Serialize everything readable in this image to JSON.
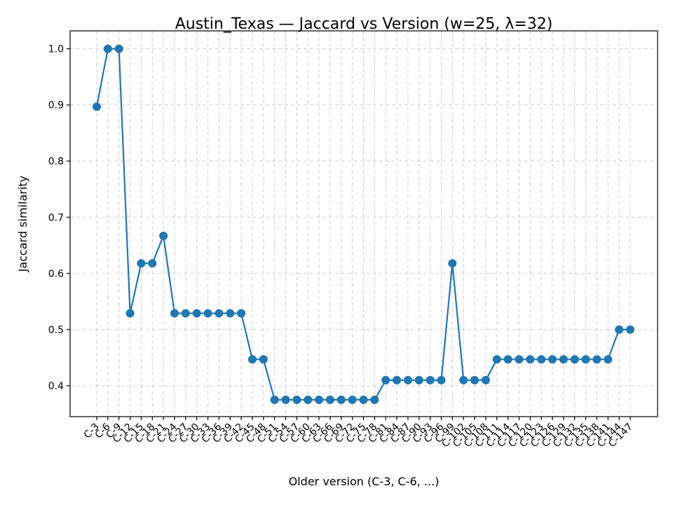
{
  "chart_data": {
    "type": "line",
    "title": "Austin_Texas — Jaccard vs Version (w=25, λ=32)",
    "xlabel": "Older version (C-3, C-6, ...)",
    "ylabel": "Jaccard similarity",
    "ylim": [
      0.345,
      1.032
    ],
    "yticks": [
      0.4,
      0.5,
      0.6,
      0.7,
      0.8,
      0.9,
      1.0
    ],
    "ytick_labels": [
      "0.4",
      "0.5",
      "0.6",
      "0.7",
      "0.8",
      "0.9",
      "1.0"
    ],
    "grid": true,
    "color": "#1f77b4",
    "categories": [
      "C-3",
      "C-6",
      "C-9",
      "C-12",
      "C-15",
      "C-18",
      "C-21",
      "C-24",
      "C-27",
      "C-30",
      "C-33",
      "C-36",
      "C-39",
      "C-42",
      "C-45",
      "C-48",
      "C-51",
      "C-54",
      "C-57",
      "C-60",
      "C-63",
      "C-66",
      "C-69",
      "C-72",
      "C-75",
      "C-78",
      "C-81",
      "C-84",
      "C-87",
      "C-90",
      "C-93",
      "C-96",
      "C-99",
      "C-102",
      "C-105",
      "C-108",
      "C-111",
      "C-114",
      "C-117",
      "C-120",
      "C-123",
      "C-126",
      "C-129",
      "C-132",
      "C-135",
      "C-138",
      "C-141",
      "C-144",
      "C-147"
    ],
    "values": [
      0.897,
      1.0,
      1.0,
      0.529,
      0.618,
      0.618,
      0.667,
      0.529,
      0.529,
      0.529,
      0.529,
      0.529,
      0.529,
      0.529,
      0.447,
      0.447,
      0.375,
      0.375,
      0.375,
      0.375,
      0.375,
      0.375,
      0.375,
      0.375,
      0.375,
      0.375,
      0.41,
      0.41,
      0.41,
      0.41,
      0.41,
      0.41,
      0.618,
      0.41,
      0.41,
      0.41,
      0.447,
      0.447,
      0.447,
      0.447,
      0.447,
      0.447,
      0.447,
      0.447,
      0.447,
      0.447,
      0.447,
      0.5,
      0.5
    ]
  }
}
